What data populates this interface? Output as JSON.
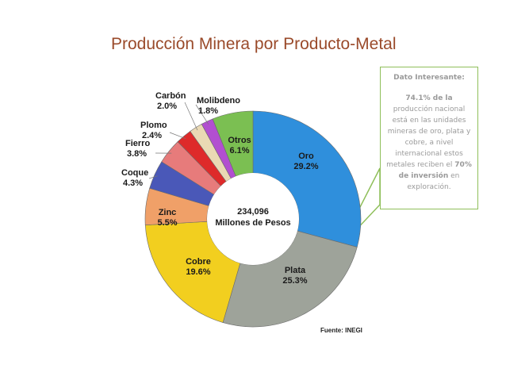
{
  "chart_data": {
    "type": "pie",
    "title": "Producción Minera por Producto-Metal",
    "center_label": [
      "234,096",
      "Millones de Pesos"
    ],
    "slices": [
      {
        "name": "Oro",
        "value": 29.2,
        "label": "29.2%",
        "color": "#2f8fdc"
      },
      {
        "name": "Plata",
        "value": 25.3,
        "label": "25.3%",
        "color": "#9ea39a"
      },
      {
        "name": "Cobre",
        "value": 19.6,
        "label": "19.6%",
        "color": "#f2cf1f"
      },
      {
        "name": "Zinc",
        "value": 5.5,
        "label": "5.5%",
        "color": "#f0a068"
      },
      {
        "name": "Coque",
        "value": 4.3,
        "label": "4.3%",
        "color": "#4a58b8"
      },
      {
        "name": "Fierro",
        "value": 3.8,
        "label": "3.8%",
        "color": "#e77b7b"
      },
      {
        "name": "Plomo",
        "value": 2.4,
        "label": "2.4%",
        "color": "#de2a2a"
      },
      {
        "name": "Carbón",
        "value": 2.0,
        "label": "2.0%",
        "color": "#ead9b4"
      },
      {
        "name": "Molibdeno",
        "value": 1.8,
        "label": "1.8%",
        "color": "#b24fd0"
      },
      {
        "name": "Otros",
        "value": 6.1,
        "label": "6.1%",
        "color": "#7bbf52"
      }
    ],
    "source": "Fuente: INEGI"
  },
  "callout": {
    "heading": "Dato Interesante:",
    "highlight_1": "74.1% de la",
    "body_1": "producción nacional está en las unidades mineras de oro, plata y cobre, a nivel internacional estos metales reciben el",
    "highlight_2": "70% de inversión",
    "body_2": "en exploración."
  },
  "colors": {
    "title": "#9a4a2a",
    "callout_border": "#8fbf5a",
    "callout_text": "#9a9a9a",
    "slice_divider": "#6a6a6a"
  }
}
